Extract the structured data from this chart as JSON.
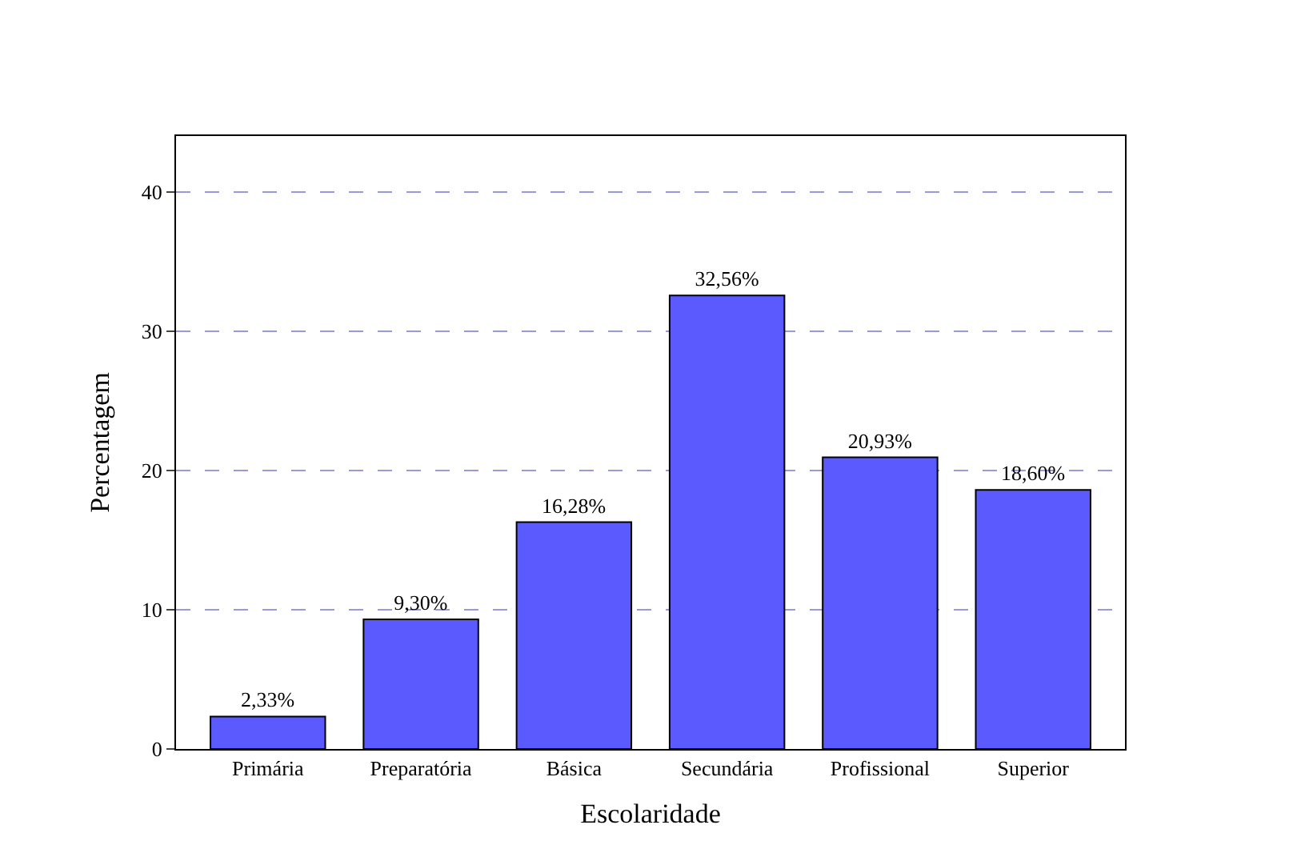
{
  "chart_data": {
    "type": "bar",
    "xlabel": "Escolaridade",
    "ylabel": "Percentagem",
    "categories": [
      "Primária",
      "Preparatória",
      "Básica",
      "Secundária",
      "Profissional",
      "Superior"
    ],
    "values": [
      2.33,
      9.3,
      16.28,
      32.56,
      20.93,
      18.6
    ],
    "value_labels": [
      "2,33%",
      "9,30%",
      "16,28%",
      "32,56%",
      "20,93%",
      "18,60%"
    ],
    "color": "#5a5aff",
    "ylim": [
      0,
      44
    ],
    "yticks": [
      0,
      10,
      20,
      30,
      40
    ],
    "grid": "y"
  }
}
